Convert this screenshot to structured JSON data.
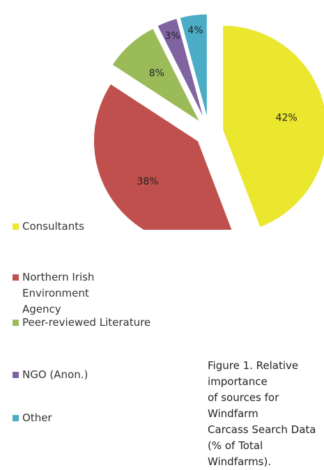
{
  "chart_data": {
    "type": "pie",
    "categories": [
      "Consultants",
      "Northern Irish Environment Agency",
      "Peer-reviewed Literature",
      "NGO (Anon.)",
      "Other"
    ],
    "values": [
      42,
      38,
      8,
      3,
      4
    ],
    "value_labels": [
      "42%",
      "38%",
      "8%",
      "3%",
      "4%"
    ],
    "colors": [
      "#ebe62e",
      "#c0504d",
      "#9bbb59",
      "#8064a2",
      "#4bacc6"
    ],
    "exploded": true,
    "caption": [
      "Figure 1. Relative importance",
      "of sources for Windfarm",
      "Carcass Search Data",
      "(% of Total Windfarms)."
    ]
  }
}
